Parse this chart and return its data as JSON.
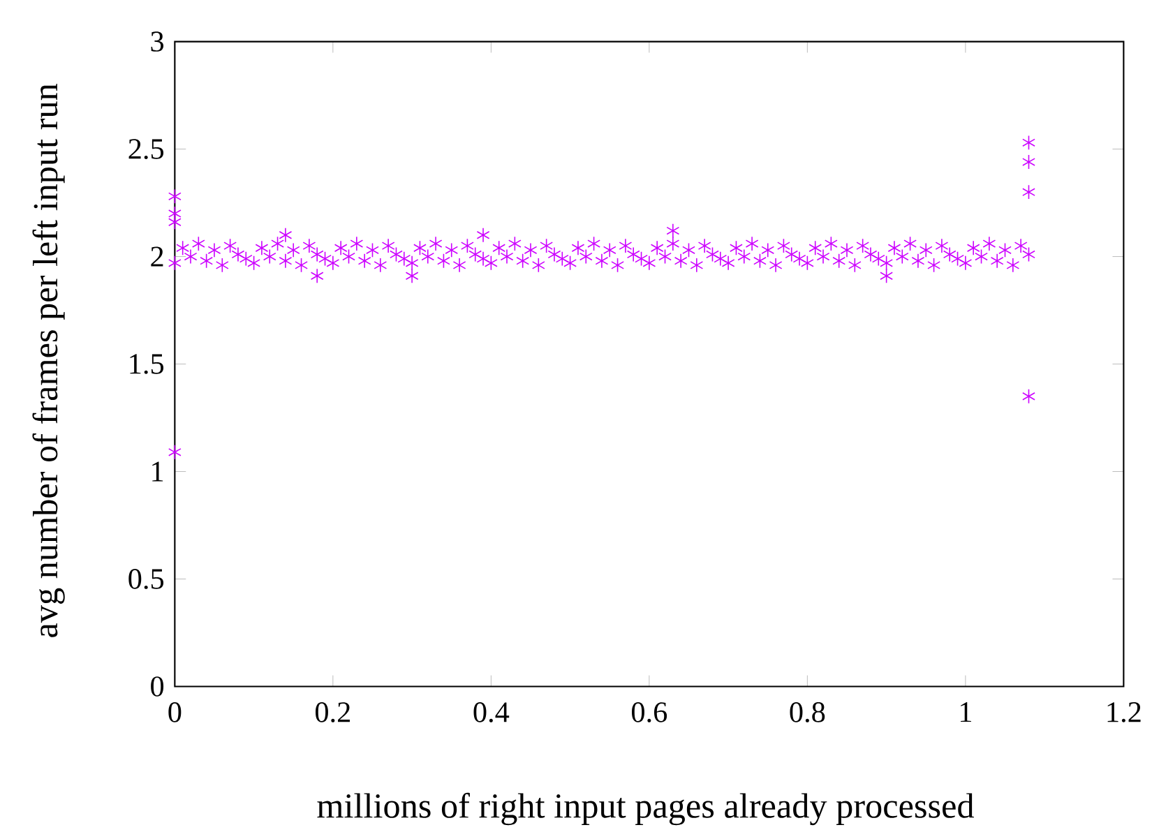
{
  "chart_data": {
    "type": "scatter",
    "xlabel": "millions of right input pages already processed",
    "ylabel": "avg number of frames per left input run",
    "xlim": [
      0,
      1.2
    ],
    "xticks": [
      0,
      0.2,
      0.4,
      0.6,
      0.8,
      1,
      1.2
    ],
    "ylim": [
      0,
      3
    ],
    "yticks": [
      0,
      0.5,
      1,
      1.5,
      2,
      2.5,
      3
    ],
    "marker": "cross",
    "grid": false,
    "series": [
      {
        "color": "#cc00ff",
        "x": [
          0,
          0.01,
          0.02,
          0.03,
          0.04,
          0.05,
          0.06,
          0.07,
          0.08,
          0.09,
          0.1,
          0.11,
          0.12,
          0.13,
          0.14,
          0.15,
          0.16,
          0.17,
          0.18,
          0.19,
          0.2,
          0.21,
          0.22,
          0.23,
          0.24,
          0.25,
          0.26,
          0.27,
          0.28,
          0.29,
          0.3,
          0.31,
          0.32,
          0.33,
          0.34,
          0.35,
          0.36,
          0.37,
          0.38,
          0.39,
          0.4,
          0.41,
          0.42,
          0.43,
          0.44,
          0.45,
          0.46,
          0.47,
          0.48,
          0.49,
          0.5,
          0.51,
          0.52,
          0.53,
          0.54,
          0.55,
          0.56,
          0.57,
          0.58,
          0.59,
          0.6,
          0.61,
          0.62,
          0.63,
          0.64,
          0.65,
          0.66,
          0.67,
          0.68,
          0.69,
          0.7,
          0.71,
          0.72,
          0.73,
          0.74,
          0.75,
          0.76,
          0.77,
          0.78,
          0.79,
          0.8,
          0.81,
          0.82,
          0.83,
          0.84,
          0.85,
          0.86,
          0.87,
          0.88,
          0.89,
          0.9,
          0.91,
          0.92,
          0.93,
          0.94,
          0.95,
          0.96,
          0.97,
          0.98,
          0.99,
          1,
          1.01,
          1.02,
          1.03,
          1.04,
          1.05,
          1.06,
          1.07,
          1.08,
          0,
          0,
          0,
          0,
          1.08,
          1.08,
          1.08,
          1.08,
          0.3,
          0.63,
          0.39,
          0.9,
          0.18,
          0.14
        ],
        "values": [
          1.97,
          2.04,
          2.0,
          2.06,
          1.98,
          2.03,
          1.96,
          2.05,
          2.01,
          1.99,
          1.97,
          2.04,
          2.0,
          2.06,
          1.98,
          2.03,
          1.96,
          2.05,
          2.01,
          1.99,
          1.97,
          2.04,
          2.0,
          2.06,
          1.98,
          2.03,
          1.96,
          2.05,
          2.01,
          1.99,
          1.97,
          2.04,
          2.0,
          2.06,
          1.98,
          2.03,
          1.96,
          2.05,
          2.01,
          1.99,
          1.97,
          2.04,
          2.0,
          2.06,
          1.98,
          2.03,
          1.96,
          2.05,
          2.01,
          1.99,
          1.97,
          2.04,
          2.0,
          2.06,
          1.98,
          2.03,
          1.96,
          2.05,
          2.01,
          1.99,
          1.97,
          2.04,
          2.0,
          2.06,
          1.98,
          2.03,
          1.96,
          2.05,
          2.01,
          1.99,
          1.97,
          2.04,
          2.0,
          2.06,
          1.98,
          2.03,
          1.96,
          2.05,
          2.01,
          1.99,
          1.97,
          2.04,
          2.0,
          2.06,
          1.98,
          2.03,
          1.96,
          2.05,
          2.01,
          1.99,
          1.97,
          2.04,
          2.0,
          2.06,
          1.98,
          2.03,
          1.96,
          2.05,
          2.01,
          1.99,
          1.97,
          2.04,
          2.0,
          2.06,
          1.98,
          2.03,
          1.96,
          2.05,
          2.01,
          1.09,
          2.28,
          2.2,
          2.16,
          2.53,
          2.44,
          2.3,
          1.35,
          1.91,
          2.12,
          2.1,
          1.91,
          1.91,
          2.1
        ]
      }
    ]
  }
}
